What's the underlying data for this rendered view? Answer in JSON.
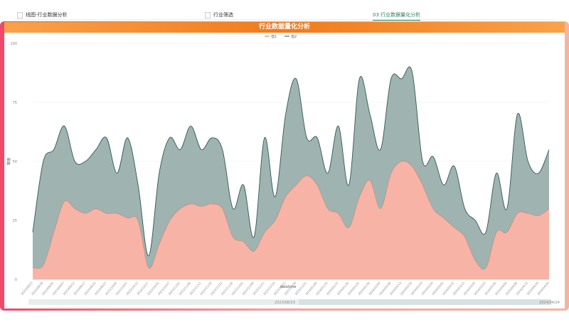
{
  "tabs": [
    "线图-行业数据分析",
    "行业筛选",
    "03 行业数据量化分析"
  ],
  "chart_data": {
    "type": "area",
    "stacked": true,
    "title": "行业数据量化分析",
    "x_label": "datetime",
    "y_label": "数值",
    "categories": [
      "2023/08/23",
      "2023/08/28",
      "2023/09/02",
      "2023/09/07",
      "2023/09/12",
      "2023/09/17",
      "2023/09/22",
      "2023/09/27",
      "2023/10/02",
      "2023/10/07",
      "2023/10/12",
      "2023/10/17",
      "2023/10/22",
      "2023/10/27",
      "2023/11/01",
      "2023/11/06",
      "2023/11/11",
      "2023/11/16",
      "2023/11/21",
      "2023/11/26",
      "2023/12/01",
      "2023/12/06",
      "2023/12/11",
      "2023/12/16",
      "2023/12/21",
      "2023/12/26",
      "2023/12/31",
      "2024/01/05",
      "2024/01/10",
      "2024/01/15",
      "2024/01/20",
      "2024/01/25",
      "2024/01/30",
      "2024/02/04",
      "2024/02/09",
      "2024/02/14",
      "2024/02/19",
      "2024/02/24",
      "2024/02/29",
      "2024/03/05",
      "2024/03/10",
      "2024/03/15",
      "2024/03/20",
      "2024/03/25",
      "2024/03/30",
      "2024/04/04",
      "2024/04/09",
      "2024/04/14",
      "2024/04/19",
      "2024/04/24"
    ],
    "series": [
      {
        "name": "值1",
        "color": "#f7b4a6",
        "line": "#e0705c",
        "values": [
          5,
          6,
          20,
          33,
          30,
          28,
          30,
          28,
          28,
          26,
          25,
          5,
          15,
          25,
          30,
          32,
          31,
          32,
          30,
          18,
          16,
          12,
          20,
          25,
          35,
          40,
          44,
          40,
          30,
          28,
          22,
          35,
          42,
          30,
          45,
          50,
          48,
          40,
          30,
          26,
          22,
          18,
          8,
          5,
          20,
          20,
          28,
          28,
          27,
          30
        ]
      },
      {
        "name": "值2",
        "color": "#9fb3b0",
        "line": "#2f5a58",
        "values": [
          15,
          44,
          35,
          32,
          20,
          22,
          25,
          32,
          17,
          34,
          15,
          5,
          30,
          35,
          25,
          33,
          24,
          28,
          25,
          12,
          24,
          6,
          40,
          10,
          35,
          45,
          16,
          20,
          15,
          37,
          18,
          50,
          28,
          25,
          40,
          35,
          40,
          10,
          22,
          14,
          26,
          12,
          17,
          15,
          25,
          10,
          42,
          22,
          18,
          25
        ]
      }
    ],
    "ylim": [
      0,
      100
    ],
    "yticks": [
      0,
      25,
      50,
      75,
      100
    ],
    "legend": "top"
  }
}
